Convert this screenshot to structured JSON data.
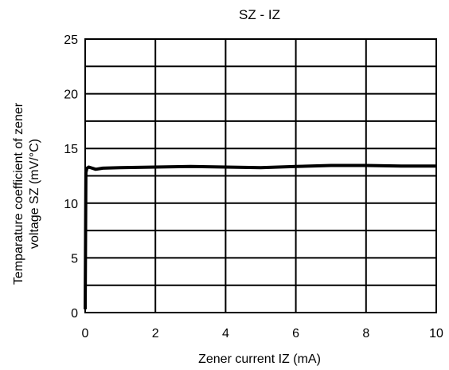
{
  "chart_data": {
    "type": "line",
    "title": "SZ - IZ",
    "xlabel": "Zener current IZ (mA)",
    "ylabel_lines": [
      "Temparature coefficient of zener",
      "voltage SZ (mV/°C)"
    ],
    "xlim": [
      0,
      10
    ],
    "ylim": [
      0,
      25
    ],
    "x_ticks": [
      0,
      2,
      4,
      6,
      8,
      10
    ],
    "y_ticks": [
      0,
      5,
      10,
      15,
      20,
      25
    ],
    "grid": true,
    "series": [
      {
        "x": [
          0,
          0.02,
          0.05,
          0.1,
          0.2,
          0.3,
          0.5,
          1,
          2,
          3,
          4,
          5,
          6,
          7,
          8,
          9,
          10
        ],
        "y": [
          0.3,
          12.8,
          13.2,
          13.3,
          13.2,
          13.1,
          13.2,
          13.25,
          13.3,
          13.35,
          13.3,
          13.25,
          13.35,
          13.45,
          13.45,
          13.4,
          13.4
        ]
      }
    ]
  }
}
